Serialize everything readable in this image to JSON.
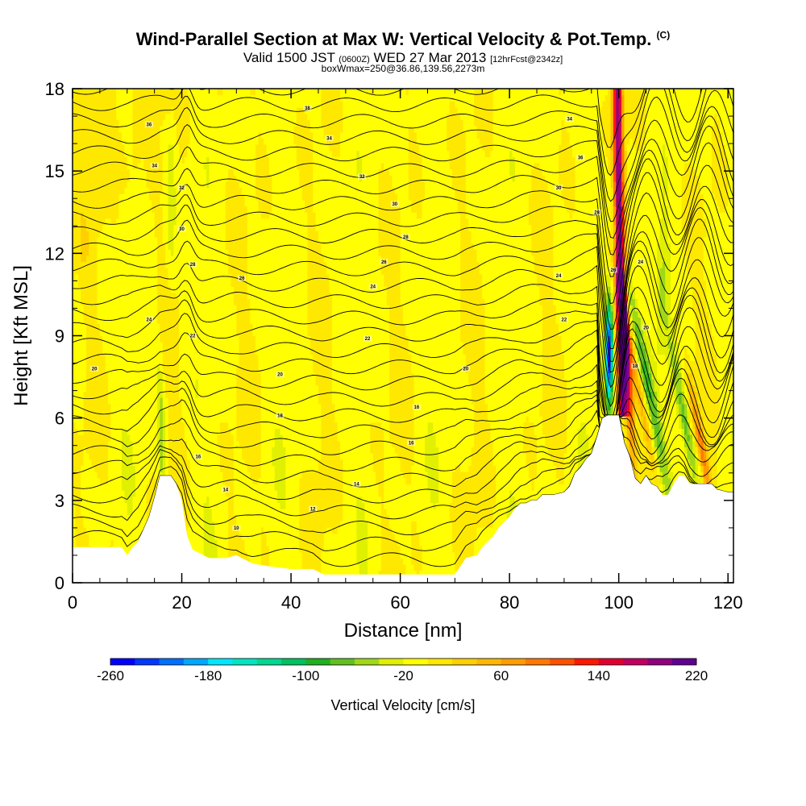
{
  "header": {
    "title": "Wind-Parallel Section at Max W: Vertical Velocity & Pot.Temp.",
    "title_mark": "(C)",
    "valid_prefix": "Valid 1500 JST",
    "valid_utc": "(0600Z)",
    "valid_date": "WED 27 Mar 2013",
    "forecast": "[12hrFcst@2342z]",
    "box_info": "boxWmax=250@36.86,139.56,2273m"
  },
  "chart_data": {
    "type": "heatmap",
    "title": "Wind-Parallel Section at Max W: Vertical Velocity & Pot.Temp.",
    "xlabel": "Distance [nm]",
    "ylabel": "Height [Kft MSL]",
    "xlim": [
      0,
      121
    ],
    "ylim": [
      0,
      18
    ],
    "x_ticks": [
      0,
      20,
      40,
      60,
      80,
      100,
      120
    ],
    "y_ticks": [
      0,
      3,
      6,
      9,
      12,
      15,
      18
    ],
    "colorbar": {
      "label": "Vertical Velocity [cm/s]",
      "min": -260,
      "max": 220,
      "step": 20,
      "tick_labels": [
        "-260",
        "-180",
        "-100",
        "-20",
        "60",
        "140",
        "220"
      ],
      "colors": [
        "#0000ff",
        "#0038ff",
        "#0070ff",
        "#00a8ff",
        "#00e6ff",
        "#00e6c0",
        "#00d890",
        "#00c060",
        "#20b020",
        "#60c020",
        "#a0d818",
        "#e0f000",
        "#ffff00",
        "#ffe800",
        "#ffd000",
        "#ffb800",
        "#ff9c00",
        "#ff7800",
        "#ff5000",
        "#ff1800",
        "#e00030",
        "#c00060",
        "#900080",
        "#600090"
      ]
    },
    "terrain_height_kft": {
      "x": [
        0,
        9,
        10,
        11,
        12,
        14,
        15,
        16,
        18,
        19,
        20,
        21,
        22,
        24,
        25,
        28,
        30,
        31,
        33,
        36,
        40,
        44,
        46,
        47,
        50,
        60,
        70,
        71,
        72,
        74,
        75,
        77,
        78,
        80,
        81,
        82,
        83,
        84,
        85,
        86,
        87,
        88,
        90,
        91,
        92,
        93,
        94,
        95,
        96,
        97,
        98,
        99,
        100,
        101,
        102,
        103,
        104,
        105,
        106,
        107,
        108,
        109,
        110,
        111,
        112,
        113,
        114,
        115,
        117,
        118,
        120,
        121
      ],
      "height": [
        1.3,
        1.3,
        1.0,
        1.3,
        1.5,
        2.4,
        3.1,
        3.9,
        3.9,
        3.6,
        3.0,
        1.7,
        1.2,
        1.0,
        0.9,
        0.9,
        1.0,
        0.9,
        0.7,
        0.6,
        0.5,
        0.5,
        0.3,
        0.3,
        0.3,
        0.3,
        0.3,
        0.6,
        0.9,
        1.0,
        1.3,
        1.7,
        2.0,
        2.4,
        2.7,
        2.9,
        2.9,
        3.0,
        3.0,
        3.2,
        3.2,
        3.2,
        3.3,
        3.5,
        4.0,
        4.2,
        4.5,
        4.7,
        5.3,
        6.0,
        6.1,
        6.1,
        6.1,
        5.1,
        4.6,
        3.8,
        3.6,
        3.9,
        3.6,
        3.5,
        3.2,
        3.2,
        3.6,
        3.9,
        3.9,
        3.6,
        3.6,
        3.6,
        3.6,
        3.4,
        3.3,
        3.3
      ]
    },
    "notable_features": [
      {
        "x": 98,
        "height": 9.5,
        "vertical_velocity": -250
      },
      {
        "x": 100,
        "height": 15,
        "vertical_velocity": 220
      },
      {
        "x": 103,
        "height": 8,
        "vertical_velocity": 160
      },
      {
        "x": 106,
        "height": 9,
        "vertical_velocity": -60
      },
      {
        "x": 112,
        "height": 6,
        "vertical_velocity": -60
      },
      {
        "x": 114,
        "height": 5,
        "vertical_velocity": 100
      }
    ],
    "contour_labels": [
      {
        "x": 14,
        "height": 16.7,
        "text": "36"
      },
      {
        "x": 43,
        "height": 17.3,
        "text": "38"
      },
      {
        "x": 91,
        "height": 16.9,
        "text": "34"
      },
      {
        "x": 15,
        "height": 15.2,
        "text": "34"
      },
      {
        "x": 47,
        "height": 16.2,
        "text": "34"
      },
      {
        "x": 93,
        "height": 15.5,
        "text": "36"
      },
      {
        "x": 53,
        "height": 14.8,
        "text": "32"
      },
      {
        "x": 20,
        "height": 14.4,
        "text": "32"
      },
      {
        "x": 89,
        "height": 14.4,
        "text": "30"
      },
      {
        "x": 59,
        "height": 13.8,
        "text": "30"
      },
      {
        "x": 96,
        "height": 13.5,
        "text": "28"
      },
      {
        "x": 20,
        "height": 12.9,
        "text": "30"
      },
      {
        "x": 61,
        "height": 12.6,
        "text": "28"
      },
      {
        "x": 57,
        "height": 11.7,
        "text": "26"
      },
      {
        "x": 22,
        "height": 11.6,
        "text": "28"
      },
      {
        "x": 99,
        "height": 11.4,
        "text": "26"
      },
      {
        "x": 104,
        "height": 11.7,
        "text": "24"
      },
      {
        "x": 31,
        "height": 11.1,
        "text": "26"
      },
      {
        "x": 89,
        "height": 11.2,
        "text": "24"
      },
      {
        "x": 55,
        "height": 10.8,
        "text": "24"
      },
      {
        "x": 14,
        "height": 9.6,
        "text": "24"
      },
      {
        "x": 90,
        "height": 9.6,
        "text": "22"
      },
      {
        "x": 22,
        "height": 9.0,
        "text": "22"
      },
      {
        "x": 105,
        "height": 9.3,
        "text": "20"
      },
      {
        "x": 54,
        "height": 8.9,
        "text": "22"
      },
      {
        "x": 4,
        "height": 7.8,
        "text": "20"
      },
      {
        "x": 38,
        "height": 7.6,
        "text": "20"
      },
      {
        "x": 72,
        "height": 7.8,
        "text": "20"
      },
      {
        "x": 103,
        "height": 7.9,
        "text": "18"
      },
      {
        "x": 63,
        "height": 6.4,
        "text": "16"
      },
      {
        "x": 38,
        "height": 6.1,
        "text": "18"
      },
      {
        "x": 62,
        "height": 5.1,
        "text": "16"
      },
      {
        "x": 23,
        "height": 4.6,
        "text": "16"
      },
      {
        "x": 52,
        "height": 3.6,
        "text": "14"
      },
      {
        "x": 28,
        "height": 3.4,
        "text": "14"
      },
      {
        "x": 44,
        "height": 2.7,
        "text": "12"
      },
      {
        "x": 30,
        "height": 2.0,
        "text": "10"
      }
    ]
  }
}
